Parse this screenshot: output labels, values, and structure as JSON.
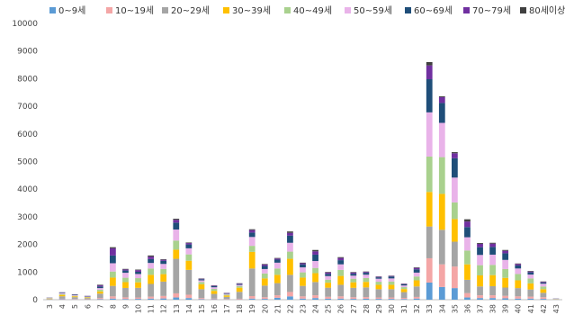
{
  "chart_data": {
    "type": "bar",
    "stacked": true,
    "ylim": [
      0,
      10000
    ],
    "yticks": [
      0,
      1000,
      2000,
      3000,
      4000,
      5000,
      6000,
      7000,
      8000,
      9000,
      10000
    ],
    "grid": false,
    "legend_position": "top",
    "categories": [
      "3",
      "4",
      "5",
      "6",
      "7",
      "8",
      "9",
      "10",
      "11",
      "12",
      "13",
      "14",
      "15",
      "16",
      "17",
      "18",
      "19",
      "20",
      "21",
      "22",
      "23",
      "24",
      "25",
      "26",
      "27",
      "28",
      "29",
      "30",
      "31",
      "32",
      "33",
      "34",
      "35",
      "36",
      "37",
      "38",
      "39",
      "40",
      "41",
      "42",
      "43"
    ],
    "series": [
      {
        "name": "0~9세",
        "color": "#5b9bd5",
        "values": [
          2,
          15,
          8,
          5,
          20,
          40,
          25,
          30,
          40,
          45,
          80,
          60,
          20,
          15,
          8,
          10,
          40,
          30,
          70,
          120,
          40,
          60,
          35,
          40,
          30,
          35,
          30,
          30,
          25,
          40,
          620,
          460,
          420,
          80,
          60,
          60,
          50,
          40,
          40,
          30,
          5
        ]
      },
      {
        "name": "10~19세",
        "color": "#f4a6a6",
        "values": [
          5,
          20,
          15,
          10,
          40,
          80,
          60,
          50,
          70,
          90,
          150,
          120,
          40,
          25,
          15,
          25,
          90,
          60,
          90,
          160,
          80,
          100,
          70,
          80,
          60,
          60,
          50,
          50,
          40,
          60,
          880,
          820,
          780,
          160,
          100,
          100,
          90,
          80,
          70,
          60,
          5
        ]
      },
      {
        "name": "20~29세",
        "color": "#a5a5a5",
        "values": [
          20,
          90,
          70,
          45,
          160,
          380,
          340,
          350,
          460,
          520,
          1250,
          900,
          320,
          170,
          80,
          250,
          1000,
          420,
          440,
          620,
          380,
          480,
          330,
          420,
          340,
          350,
          300,
          300,
          210,
          380,
          1150,
          1250,
          900,
          480,
          320,
          330,
          300,
          300,
          260,
          160,
          10
        ]
      },
      {
        "name": "30~39세",
        "color": "#ffc000",
        "values": [
          15,
          50,
          30,
          20,
          80,
          300,
          210,
          200,
          330,
          270,
          330,
          330,
          180,
          110,
          50,
          150,
          600,
          260,
          300,
          580,
          300,
          320,
          180,
          320,
          200,
          200,
          160,
          160,
          110,
          220,
          1250,
          1300,
          820,
          560,
          400,
          400,
          350,
          280,
          220,
          130,
          5
        ]
      },
      {
        "name": "40~49세",
        "color": "#a9d18e",
        "values": [
          10,
          30,
          20,
          15,
          60,
          220,
          160,
          150,
          230,
          190,
          330,
          230,
          80,
          70,
          30,
          60,
          220,
          180,
          230,
          260,
          190,
          190,
          110,
          220,
          130,
          140,
          110,
          120,
          70,
          140,
          1280,
          1330,
          600,
          500,
          370,
          370,
          320,
          230,
          180,
          100,
          5
        ]
      },
      {
        "name": "50~59세",
        "color": "#e9b3e9",
        "values": [
          10,
          30,
          20,
          15,
          60,
          300,
          180,
          150,
          200,
          180,
          400,
          220,
          60,
          60,
          30,
          40,
          320,
          160,
          210,
          320,
          180,
          250,
          130,
          200,
          110,
          120,
          110,
          110,
          60,
          140,
          1600,
          1240,
          900,
          480,
          370,
          370,
          330,
          200,
          140,
          100,
          5
        ]
      },
      {
        "name": "60~69세",
        "color": "#1f4e79",
        "values": [
          8,
          20,
          15,
          15,
          60,
          280,
          80,
          80,
          140,
          110,
          250,
          140,
          40,
          40,
          20,
          30,
          160,
          110,
          110,
          260,
          110,
          230,
          80,
          150,
          70,
          70,
          50,
          70,
          40,
          120,
          1200,
          720,
          700,
          370,
          280,
          280,
          240,
          110,
          80,
          40,
          5
        ]
      },
      {
        "name": "70~79세",
        "color": "#7030a0",
        "values": [
          5,
          10,
          10,
          10,
          40,
          260,
          40,
          60,
          90,
          40,
          100,
          50,
          20,
          20,
          10,
          20,
          90,
          50,
          40,
          100,
          40,
          120,
          50,
          80,
          40,
          30,
          20,
          20,
          15,
          50,
          500,
          210,
          180,
          200,
          120,
          120,
          90,
          50,
          30,
          25,
          3
        ]
      },
      {
        "name": "80세이상",
        "color": "#404040",
        "values": [
          2,
          5,
          5,
          5,
          20,
          40,
          20,
          20,
          40,
          20,
          40,
          20,
          10,
          10,
          5,
          10,
          30,
          20,
          20,
          50,
          20,
          50,
          20,
          30,
          20,
          15,
          10,
          10,
          10,
          20,
          120,
          30,
          40,
          80,
          30,
          30,
          30,
          20,
          20,
          15,
          2
        ]
      }
    ]
  }
}
